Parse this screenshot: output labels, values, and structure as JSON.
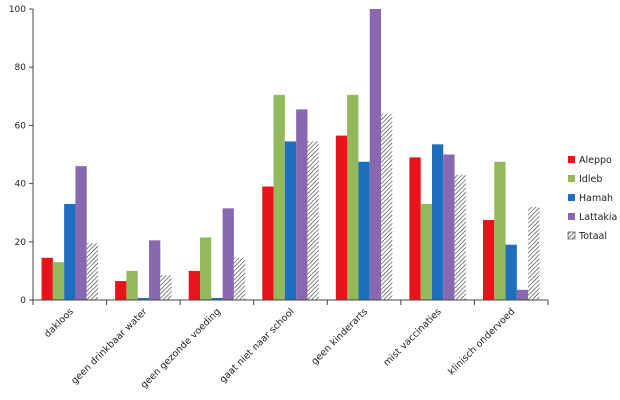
{
  "chart_data": {
    "type": "bar",
    "title": "",
    "xlabel": "",
    "ylabel": "",
    "ylim": [
      0,
      100
    ],
    "yticks": [
      0,
      20,
      40,
      60,
      80,
      100
    ],
    "grid": false,
    "legend_position": "right",
    "categories": [
      "dakloos",
      "geen drinkbaar water",
      "geen gezonde voeding",
      "gaat niet naar school",
      "geen kinderarts",
      "mist vaccinaties",
      "klinisch ondervoed"
    ],
    "series": [
      {
        "name": "Aleppo",
        "color": "#e8141b",
        "values": [
          14.5,
          6.5,
          10,
          39,
          56.5,
          49,
          27.5
        ]
      },
      {
        "name": "Idleb",
        "color": "#93b95c",
        "values": [
          13,
          10,
          21.5,
          70.5,
          70.5,
          33,
          47.5
        ]
      },
      {
        "name": "Hamah",
        "color": "#1f6fbf",
        "values": [
          33,
          0.7,
          0.7,
          54.5,
          47.5,
          53.5,
          19
        ]
      },
      {
        "name": "Lattakia",
        "color": "#8868b0",
        "values": [
          46,
          20.5,
          31.5,
          65.5,
          100,
          50,
          3.5
        ]
      },
      {
        "name": "Totaal",
        "color": "hatch",
        "values": [
          19.5,
          8.5,
          14.5,
          54.5,
          64,
          43,
          32
        ]
      }
    ]
  }
}
